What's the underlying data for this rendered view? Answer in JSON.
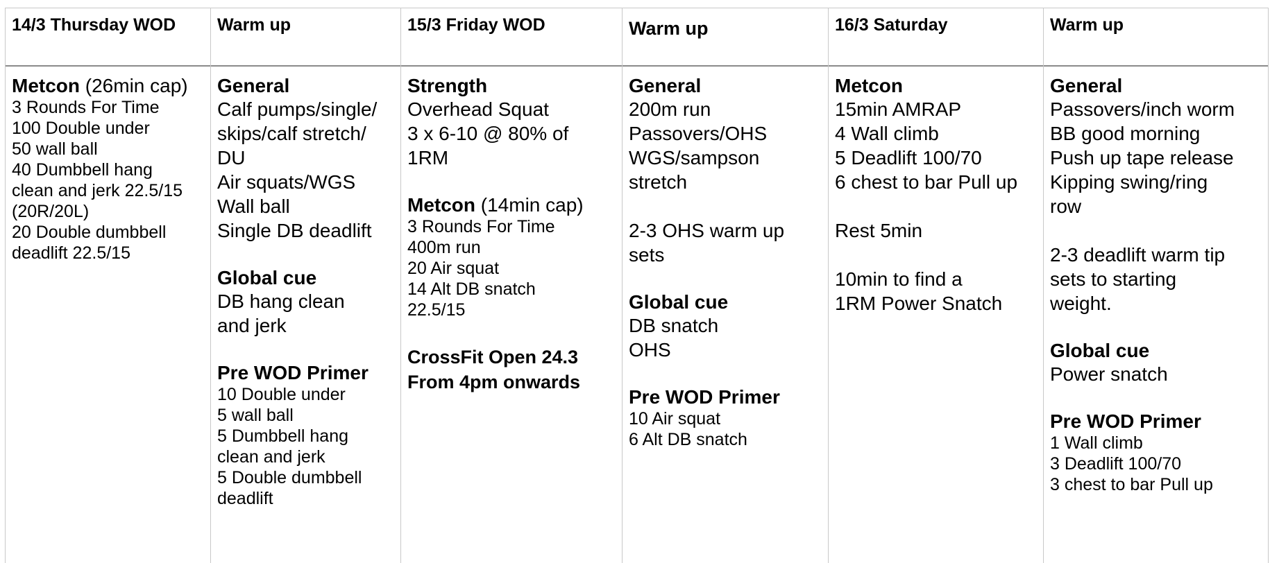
{
  "columns": [
    {
      "header": "14/3 Thursday WOD",
      "blocks": [
        {
          "heading": "Metcon",
          "suffix": " (26min cap)",
          "size": "sm",
          "lines": [
            "3 Rounds For Time",
            "100 Double under",
            "50 wall ball",
            "40 Dumbbell hang",
            "clean and jerk 22.5/15",
            "(20R/20L)",
            "20 Double dumbbell",
            "deadlift 22.5/15"
          ]
        }
      ]
    },
    {
      "header": "Warm up",
      "blocks": [
        {
          "heading": "General",
          "size": "lg",
          "lines": [
            "Calf pumps/single/",
            "skips/calf stretch/",
            "DU",
            "Air squats/WGS",
            "Wall ball",
            "Single DB deadlift"
          ]
        },
        {
          "heading": "Global cue",
          "size": "lg",
          "lines": [
            "DB hang clean",
            "and jerk"
          ]
        },
        {
          "heading": "Pre WOD Primer",
          "size": "sm",
          "lines": [
            "10 Double under",
            "5 wall ball",
            "5 Dumbbell hang",
            "clean and jerk",
            "5 Double dumbbell",
            "deadlift"
          ]
        }
      ]
    },
    {
      "header": "15/3 Friday WOD",
      "blocks": [
        {
          "heading": "Strength",
          "size": "lg",
          "lines": [
            "Overhead Squat",
            "3 x 6-10 @ 80% of",
            "1RM"
          ]
        },
        {
          "heading": "Metcon",
          "suffix": " (14min cap)",
          "size": "sm",
          "lines": [
            "3 Rounds For Time",
            "400m run",
            "20 Air squat",
            "14 Alt DB snatch",
            "22.5/15"
          ]
        },
        {
          "heading": "",
          "size": "bold",
          "lines": [
            "CrossFit Open 24.3",
            "From 4pm onwards"
          ]
        }
      ]
    },
    {
      "header": "Warm up",
      "big": true,
      "blocks": [
        {
          "heading": "General",
          "size": "lg",
          "lines": [
            "200m run",
            "Passovers/OHS",
            "WGS/sampson",
            "stretch"
          ]
        },
        {
          "heading": "",
          "size": "lg",
          "lines": [
            "2-3 OHS warm up",
            "sets"
          ]
        },
        {
          "heading": "Global cue",
          "size": "lg",
          "lines": [
            "DB snatch",
            "OHS"
          ]
        },
        {
          "heading": "Pre WOD Primer",
          "size": "sm",
          "lines": [
            "10 Air squat",
            "6 Alt DB snatch"
          ]
        }
      ]
    },
    {
      "header": "16/3 Saturday",
      "blocks": [
        {
          "heading": "Metcon",
          "size": "lg",
          "lines": [
            "15min AMRAP",
            "4 Wall climb",
            "5 Deadlift 100/70",
            "6 chest to bar Pull up"
          ]
        },
        {
          "heading": "",
          "size": "lg",
          "lines": [
            "Rest 5min"
          ]
        },
        {
          "heading": "",
          "size": "lg",
          "lines": [
            "10min to find a",
            "1RM Power Snatch"
          ]
        }
      ]
    },
    {
      "header": "Warm up",
      "blocks": [
        {
          "heading": "General",
          "size": "lg",
          "lines": [
            "Passovers/inch worm",
            "BB good morning",
            "Push up tape release",
            "Kipping swing/ring",
            "row"
          ]
        },
        {
          "heading": "",
          "size": "lg",
          "lines": [
            "2-3 deadlift warm tip",
            "sets to starting",
            "weight."
          ]
        },
        {
          "heading": "Global cue",
          "size": "lg",
          "lines": [
            "Power snatch"
          ]
        },
        {
          "heading": "Pre WOD Primer",
          "size": "sm",
          "lines": [
            "1 Wall climb",
            "3 Deadlift 100/70",
            "3 chest to bar Pull up"
          ]
        }
      ]
    }
  ]
}
